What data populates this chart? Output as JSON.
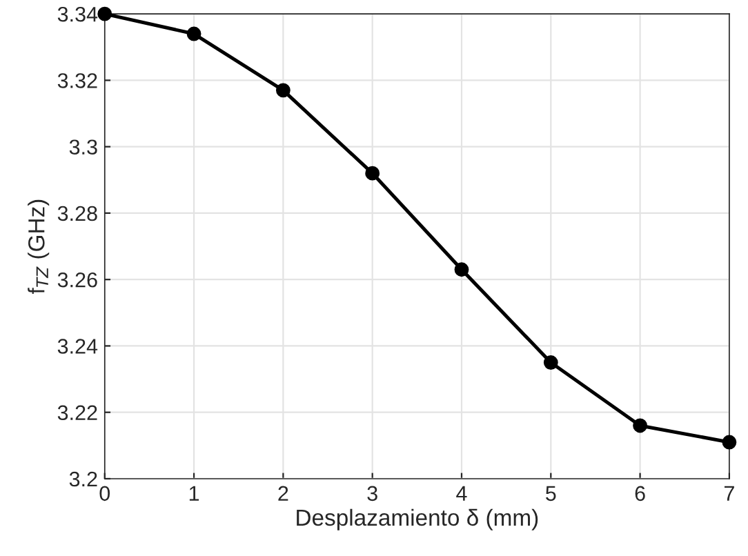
{
  "chart_data": {
    "type": "line",
    "xlabel": "Desplazamiento δ (mm)",
    "ylabel": "f$_{TZ}$ (GHz)",
    "x": [
      0,
      1,
      2,
      3,
      4,
      5,
      6,
      7
    ],
    "series": [
      {
        "color": "#000000",
        "values": [
          3.34,
          3.334,
          3.317,
          3.292,
          3.263,
          3.235,
          3.216,
          3.211
        ]
      }
    ],
    "xlim": [
      0,
      7
    ],
    "xticks": [
      0,
      1,
      2,
      3,
      4,
      5,
      6,
      7
    ],
    "ylim": [
      3.2,
      3.34
    ],
    "yticks": [
      3.2,
      3.22,
      3.24,
      3.26,
      3.28,
      3.3,
      3.32,
      3.34
    ],
    "grid": true,
    "marker": "circle",
    "line_style": "solid",
    "legend": false
  }
}
